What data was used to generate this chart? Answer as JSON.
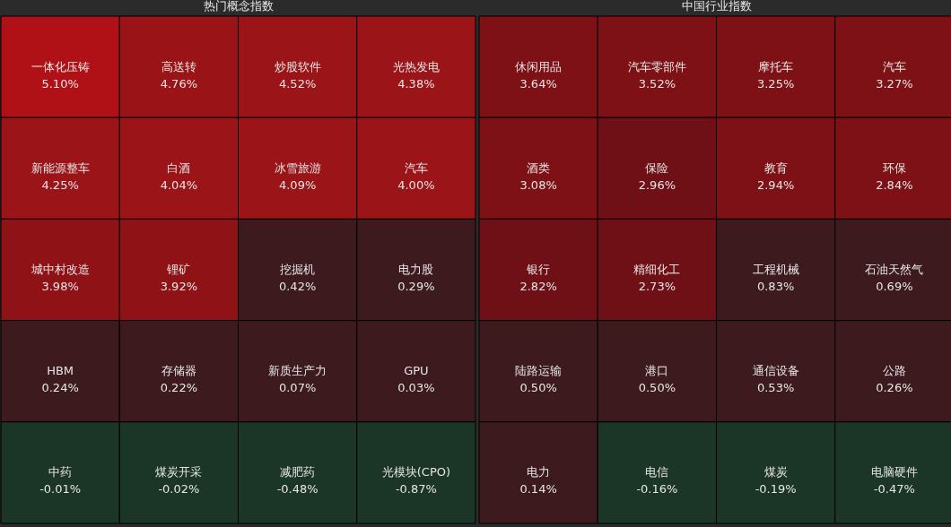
{
  "chart_data": [
    {
      "type": "other",
      "title": "热门概念指数",
      "categories": [
        "一体化压铸",
        "高送转",
        "炒股软件",
        "光热发电",
        "新能源整车",
        "白酒",
        "冰雪旅游",
        "汽车",
        "城中村改造",
        "锂矿",
        "挖掘机",
        "电力股",
        "HBM",
        "存储器",
        "新质生产力",
        "GPU",
        "中药",
        "煤炭开采",
        "减肥药",
        "光模块(CPO)"
      ],
      "values": [
        5.1,
        4.76,
        4.52,
        4.38,
        4.25,
        4.04,
        4.09,
        4.0,
        3.98,
        3.92,
        0.42,
        0.29,
        0.24,
        0.22,
        0.07,
        0.03,
        -0.01,
        -0.02,
        -0.48,
        -0.87
      ],
      "value_labels": [
        "5.10%",
        "4.76%",
        "4.52%",
        "4.38%",
        "4.25%",
        "4.04%",
        "4.09%",
        "4.00%",
        "3.98%",
        "3.92%",
        "0.42%",
        "0.29%",
        "0.24%",
        "0.22%",
        "0.07%",
        "0.03%",
        "-0.01%",
        "-0.02%",
        "-0.48%",
        "-0.87%"
      ],
      "colors": [
        "#b01116",
        "#9a1317",
        "#9a1418",
        "#9a1418",
        "#9a1418",
        "#9a1418",
        "#9a1418",
        "#9a1418",
        "#8f1216",
        "#8f1216",
        "#3c1a1e",
        "#3c1a1e",
        "#3c1a1e",
        "#3c1a1e",
        "#3c1a1e",
        "#3c1a1e",
        "#1b3526",
        "#1b3526",
        "#1b3526",
        "#1b3526"
      ]
    },
    {
      "type": "other",
      "title": "中国行业指数",
      "categories": [
        "休闲用品",
        "汽车零部件",
        "摩托车",
        "汽车",
        "酒类",
        "保险",
        "教育",
        "环保",
        "银行",
        "精细化工",
        "工程机械",
        "石油天然气",
        "陆路运输",
        "港口",
        "通信设备",
        "公路",
        "电力",
        "电信",
        "煤炭",
        "电脑硬件"
      ],
      "values": [
        3.64,
        3.52,
        3.25,
        3.27,
        3.08,
        2.96,
        2.94,
        2.84,
        2.82,
        2.73,
        0.83,
        0.69,
        0.5,
        0.5,
        0.53,
        0.26,
        0.14,
        -0.16,
        -0.19,
        -0.47
      ],
      "value_labels": [
        "3.64%",
        "3.52%",
        "3.25%",
        "3.27%",
        "3.08%",
        "2.96%",
        "2.94%",
        "2.84%",
        "2.82%",
        "2.73%",
        "0.83%",
        "0.69%",
        "0.50%",
        "0.50%",
        "0.53%",
        "0.26%",
        "0.14%",
        "-0.16%",
        "-0.19%",
        "-0.47%"
      ],
      "colors": [
        "#7e1115",
        "#7e1115",
        "#7e1115",
        "#7e1115",
        "#7e1115",
        "#6e1015",
        "#7e1115",
        "#7e1115",
        "#6e1015",
        "#6e1015",
        "#3c1a1e",
        "#3c1a1e",
        "#3c1a1e",
        "#3c1a1e",
        "#3c1a1e",
        "#3c1a1e",
        "#3c1a1e",
        "#1b3526",
        "#1b3526",
        "#1b3526"
      ]
    }
  ]
}
